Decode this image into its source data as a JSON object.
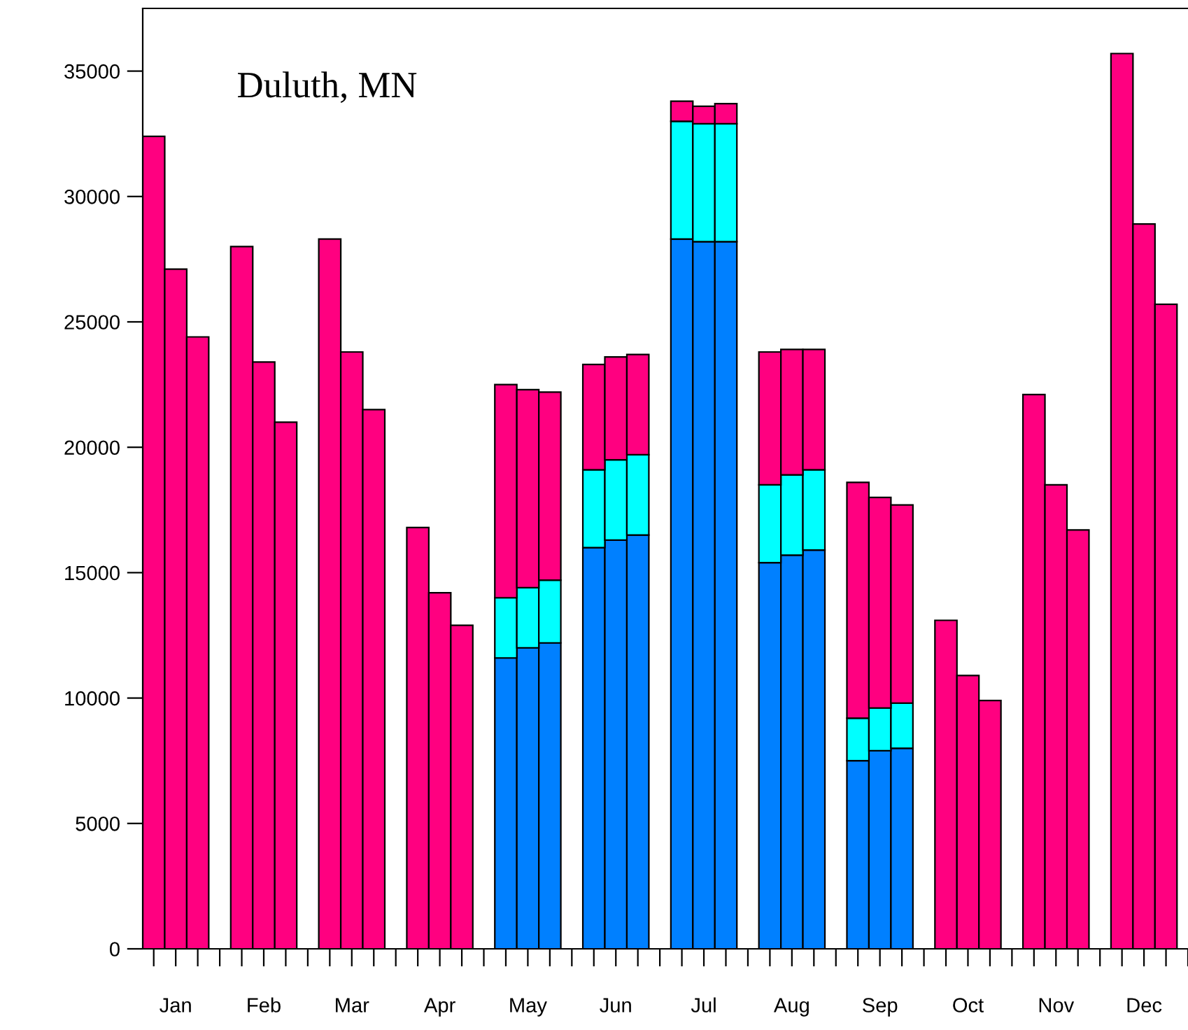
{
  "chart_data": {
    "type": "bar",
    "stacked": true,
    "title": "Duluth, MN",
    "categories": [
      null,
      "Jan",
      null,
      null,
      null,
      "Feb",
      null,
      null,
      null,
      "Mar",
      null,
      null,
      null,
      "Apr",
      null,
      null,
      null,
      "May",
      null,
      null,
      null,
      "Jun",
      null,
      null,
      null,
      "Jul",
      null,
      null,
      null,
      "Aug",
      null,
      null,
      null,
      "Sep",
      null,
      null,
      null,
      "Oct",
      null,
      null,
      null,
      "Nov",
      null,
      null,
      null,
      "Dec",
      null,
      null
    ],
    "series": [
      {
        "color": "#0080ff",
        "values": [
          null,
          null,
          null,
          null,
          null,
          null,
          null,
          null,
          null,
          null,
          null,
          null,
          null,
          null,
          null,
          null,
          11600,
          12000,
          12200,
          null,
          16000,
          16300,
          16500,
          null,
          28300,
          28200,
          28200,
          null,
          15400,
          15700,
          15900,
          null,
          7500,
          7900,
          8000,
          null,
          null,
          null,
          null,
          null,
          null,
          null,
          null,
          null,
          null,
          null,
          null,
          null
        ]
      },
      {
        "color": "#00ffff",
        "values": [
          null,
          null,
          null,
          null,
          null,
          null,
          null,
          null,
          null,
          null,
          null,
          null,
          null,
          null,
          null,
          null,
          2400,
          2400,
          2500,
          null,
          3100,
          3200,
          3200,
          null,
          4700,
          4700,
          4700,
          null,
          3100,
          3200,
          3200,
          null,
          1700,
          1700,
          1800,
          null,
          null,
          null,
          null,
          null,
          null,
          null,
          null,
          null,
          null,
          null,
          null,
          null
        ]
      },
      {
        "color": "#ff0080",
        "values": [
          32400,
          27100,
          24400,
          null,
          28000,
          23400,
          21000,
          null,
          28300,
          23800,
          21500,
          null,
          16800,
          14200,
          12900,
          null,
          8500,
          7900,
          7500,
          null,
          4200,
          4100,
          4000,
          null,
          800,
          700,
          800,
          null,
          5300,
          5000,
          4800,
          null,
          9400,
          8400,
          7900,
          null,
          13100,
          10900,
          9900,
          null,
          22100,
          18500,
          16700,
          null,
          35700,
          28900,
          25700,
          null
        ]
      }
    ],
    "ylim": [
      0,
      37500
    ],
    "yticks": [
      0,
      5000,
      10000,
      15000,
      20000,
      25000,
      30000,
      35000
    ],
    "grid": false
  }
}
